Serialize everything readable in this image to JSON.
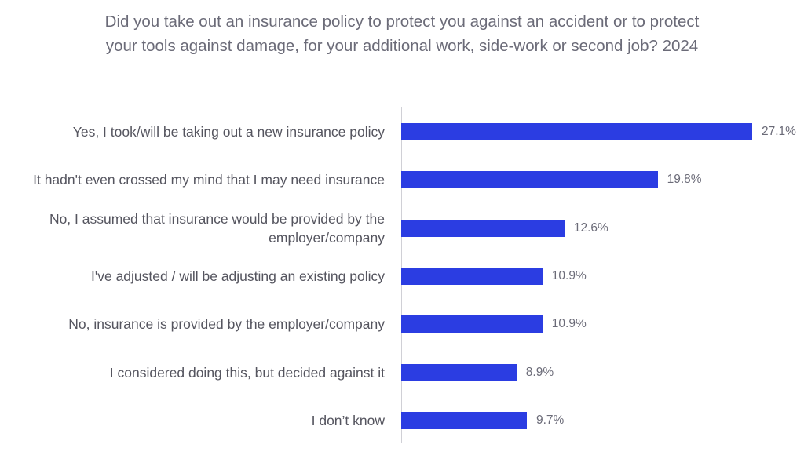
{
  "chart_data": {
    "type": "bar",
    "orientation": "horizontal",
    "title": "Did you take out an insurance policy to protect you against an accident or to protect your tools against damage, for your additional work, side-work or second job? 2024",
    "categories": [
      "Yes, I took/will be taking out a new insurance policy",
      "It hadn't even crossed my mind that I may need insurance",
      "No, I assumed that insurance would be provided by the employer/company",
      "I've adjusted / will be adjusting an existing policy",
      "No, insurance is provided by the employer/company",
      "I considered doing this, but decided against it",
      "I don’t know"
    ],
    "values": [
      27.1,
      19.8,
      12.6,
      10.9,
      10.9,
      8.9,
      9.7
    ],
    "value_labels": [
      "27.1%",
      "19.8%",
      "12.6%",
      "10.9%",
      "10.9%",
      "8.9%",
      "9.7%"
    ],
    "color": "#2b3de2"
  }
}
